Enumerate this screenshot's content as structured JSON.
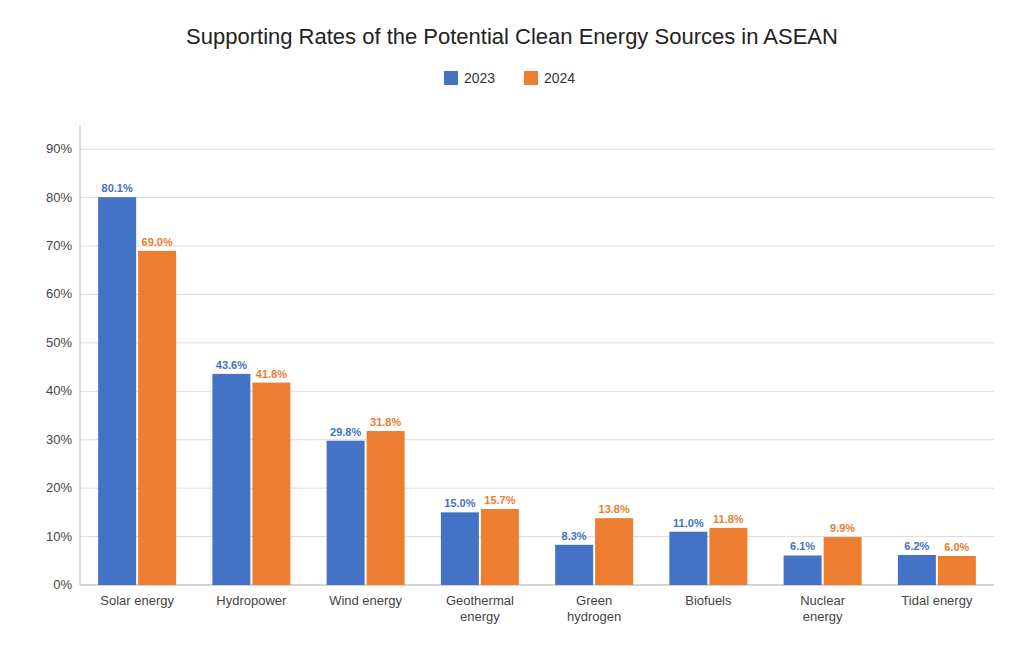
{
  "chart_data": {
    "type": "bar",
    "title": "Supporting Rates of the Potential Clean Energy Sources in ASEAN",
    "categories": [
      "Solar energy",
      "Hydropower",
      "Wind energy",
      "Geothermal\nenergy",
      "Green\nhydrogen",
      "Biofuels",
      "Nuclear\nenergy",
      "Tidal energy"
    ],
    "series": [
      {
        "name": "2023",
        "color": "#4472C4",
        "values": [
          80.1,
          43.6,
          29.8,
          15.0,
          8.3,
          11.0,
          6.1,
          6.2
        ],
        "value_labels": [
          "80.1%",
          "43.6%",
          "29.8%",
          "15.0%",
          "8.3%",
          "11.0%",
          "6.1%",
          "6.2%"
        ]
      },
      {
        "name": "2024",
        "color": "#ED7D31",
        "values": [
          69.0,
          41.8,
          31.8,
          15.7,
          13.8,
          11.8,
          9.9,
          6.0
        ],
        "value_labels": [
          "69.0%",
          "41.8%",
          "31.8%",
          "15.7%",
          "13.8%",
          "11.8%",
          "9.9%",
          "6.0%"
        ]
      }
    ],
    "ylim": [
      0,
      95
    ],
    "yticks": [
      {
        "value": 0,
        "label": "0%"
      },
      {
        "value": 10,
        "label": "10%"
      },
      {
        "value": 20,
        "label": "20%"
      },
      {
        "value": 30,
        "label": "30%"
      },
      {
        "value": 40,
        "label": "40%"
      },
      {
        "value": 50,
        "label": "50%"
      },
      {
        "value": 60,
        "label": "60%"
      },
      {
        "value": 70,
        "label": "70%"
      },
      {
        "value": 80,
        "label": "80%"
      },
      {
        "value": 90,
        "label": "90%"
      }
    ],
    "grid": true,
    "legend": "top",
    "data_labels": true
  }
}
